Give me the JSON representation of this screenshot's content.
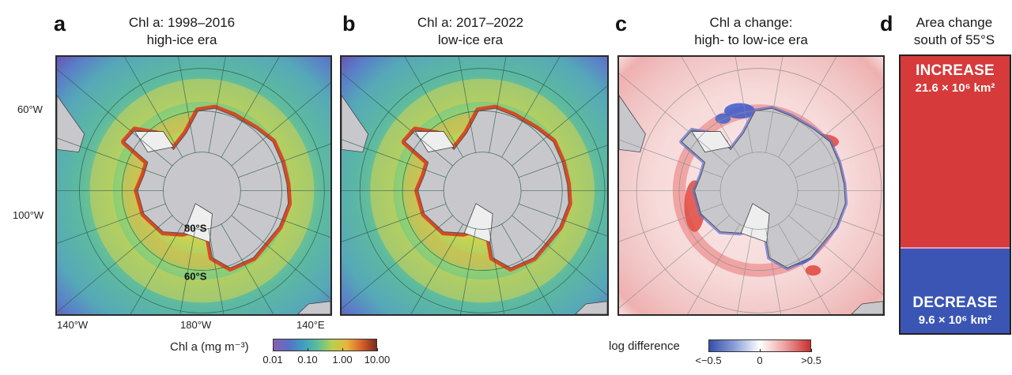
{
  "figure": {
    "panels": [
      {
        "letter": "a",
        "title_line1": "Chl a: 1998–2016",
        "title_line2": "high-ice era"
      },
      {
        "letter": "b",
        "title_line1": "Chl a: 2017–2022",
        "title_line2": "low-ice era"
      },
      {
        "letter": "c",
        "title_line1": "Chl a change:",
        "title_line2": "high- to low-ice era"
      },
      {
        "letter": "d",
        "title_line1": "Area change",
        "title_line2": "south of 55°S"
      }
    ],
    "map_labels": {
      "lon_left": "60°W",
      "lon_left2": "100°W",
      "lon_bottom": [
        "140°W",
        "180°W",
        "140°E"
      ],
      "lat_inner": "80°S",
      "lat_outer": "60°S"
    },
    "colors": {
      "increase": "#d63a3a",
      "decrease": "#3a55b4",
      "land": "#c8c8cc",
      "ice_shelf": "#eeeeee"
    }
  },
  "chart_data": [
    {
      "type": "heatmap",
      "panel": "a",
      "title": "Chl a: 1998–2016 high-ice era",
      "projection": "south polar stereographic",
      "graticule_lat": [
        "80°S",
        "60°S"
      ],
      "graticule_lon": [
        "60°W",
        "100°W",
        "140°W",
        "180°W",
        "140°E"
      ],
      "colorbar": "chl"
    },
    {
      "type": "heatmap",
      "panel": "b",
      "title": "Chl a: 2017–2022 low-ice era",
      "projection": "south polar stereographic",
      "colorbar": "chl"
    },
    {
      "type": "heatmap",
      "panel": "c",
      "title": "Chl a change: high- to low-ice era",
      "projection": "south polar stereographic",
      "colorbar": "logdiff"
    },
    {
      "type": "bar",
      "panel": "d",
      "title": "Area change south of 55°S",
      "stacked": true,
      "unit": "10^6 km²",
      "categories": [
        "INCREASE",
        "DECREASE"
      ],
      "values": [
        21.6,
        9.6
      ],
      "value_labels": [
        "21.6 × 10⁶ km²",
        "9.6 × 10⁶ km²"
      ]
    }
  ],
  "colorbars": {
    "chl": {
      "title": "Chl a (mg m⁻³)",
      "scale": "log",
      "range": [
        0.01,
        10
      ],
      "ticks": [
        "0.01",
        "0.10",
        "1.00",
        "10.00"
      ],
      "colors": [
        "#8a5fb0",
        "#5a6fc4",
        "#3f9ec0",
        "#5bbf9a",
        "#b8d04e",
        "#e8b43a",
        "#d9602c",
        "#7a2b1e"
      ]
    },
    "logdiff": {
      "title": "log difference",
      "range": [
        -0.5,
        0.5
      ],
      "ticks": [
        "<−0.5",
        "0",
        ">0.5"
      ],
      "colors": [
        "#3650a8",
        "#8a9ed8",
        "#ffffff",
        "#eea0a0",
        "#c8302e"
      ]
    }
  }
}
